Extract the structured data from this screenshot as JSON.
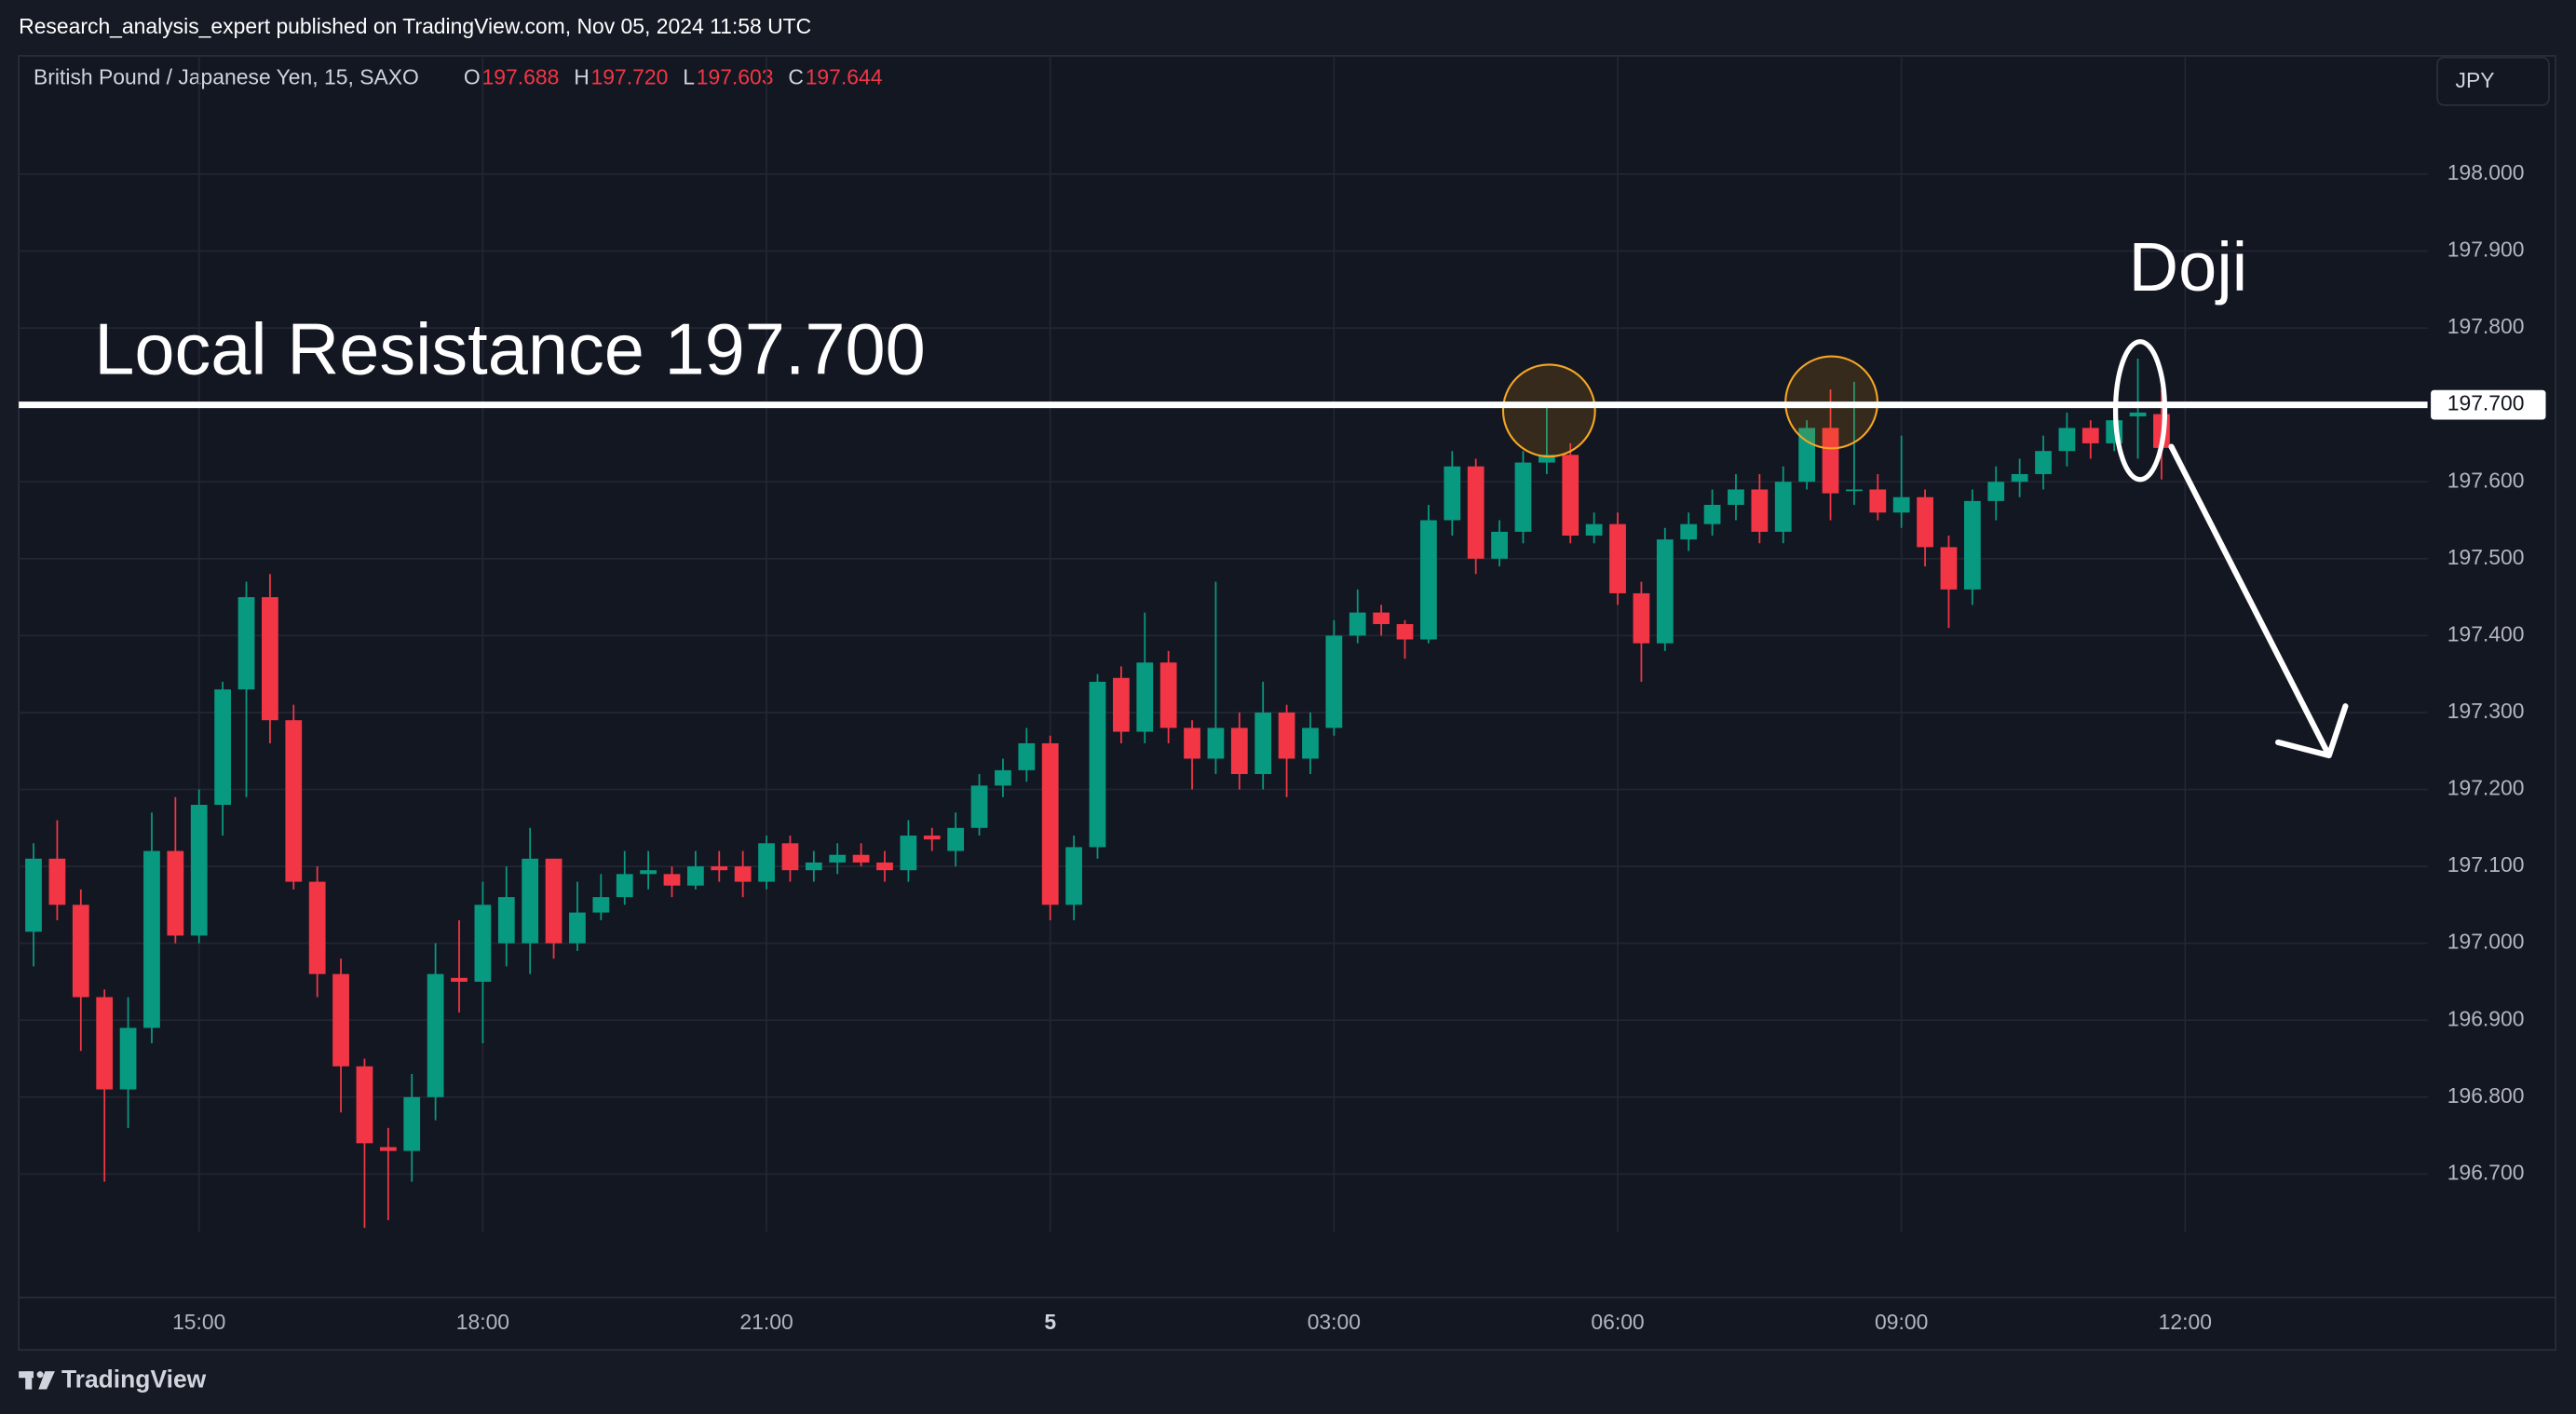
{
  "header": {
    "publisher": "Research_analysis_expert published on TradingView.com, Nov 05, 2024 11:58 UTC",
    "symbol": "British Pound / Japanese Yen, 15, SAXO",
    "ohlc": [
      {
        "key": "O",
        "value": "197.688"
      },
      {
        "key": "H",
        "value": "197.720"
      },
      {
        "key": "L",
        "value": "197.603"
      },
      {
        "key": "C",
        "value": "197.644"
      }
    ],
    "currency": "JPY",
    "logo": "TradingView"
  },
  "chart_data": {
    "type": "candlestick",
    "open": [
      197.015,
      197.11,
      197.05,
      196.93,
      196.81,
      196.89,
      197.12,
      197.01,
      197.18,
      197.33,
      197.45,
      197.29,
      197.08,
      196.96,
      196.84,
      196.735,
      196.73,
      196.8,
      196.955,
      196.95,
      197.0,
      197.0,
      197.11,
      197.0,
      197.04,
      197.06,
      197.09,
      197.09,
      197.075,
      197.1,
      197.1,
      197.08,
      197.13,
      197.095,
      197.105,
      197.115,
      197.105,
      197.095,
      197.14,
      197.12,
      197.15,
      197.205,
      197.225,
      197.26,
      197.05,
      197.125,
      197.345,
      197.275,
      197.365,
      197.28,
      197.24,
      197.28,
      197.22,
      197.3,
      197.24,
      197.28,
      197.4,
      197.43,
      197.415,
      197.395,
      197.55,
      197.62,
      197.5,
      197.535,
      197.625,
      197.635,
      197.53,
      197.545,
      197.455,
      197.39,
      197.525,
      197.545,
      197.57,
      197.59,
      197.535,
      197.6,
      197.67,
      197.59,
      197.59,
      197.56,
      197.58,
      197.515,
      197.46,
      197.575,
      197.6,
      197.61,
      197.64,
      197.67,
      197.65,
      197.685,
      197.688
    ],
    "high": [
      197.13,
      197.16,
      197.07,
      196.94,
      196.93,
      197.17,
      197.19,
      197.2,
      197.34,
      197.47,
      197.48,
      197.31,
      197.1,
      196.98,
      196.85,
      196.76,
      196.83,
      197.0,
      197.03,
      197.08,
      197.1,
      197.15,
      197.11,
      197.08,
      197.09,
      197.12,
      197.12,
      197.1,
      197.12,
      197.12,
      197.12,
      197.14,
      197.14,
      197.12,
      197.13,
      197.13,
      197.12,
      197.16,
      197.15,
      197.17,
      197.22,
      197.24,
      197.28,
      197.27,
      197.14,
      197.35,
      197.36,
      197.43,
      197.38,
      197.29,
      197.47,
      197.3,
      197.34,
      197.31,
      197.3,
      197.42,
      197.46,
      197.44,
      197.42,
      197.57,
      197.64,
      197.63,
      197.55,
      197.64,
      197.7,
      197.65,
      197.56,
      197.56,
      197.47,
      197.54,
      197.56,
      197.59,
      197.61,
      197.61,
      197.62,
      197.68,
      197.72,
      197.73,
      197.61,
      197.66,
      197.59,
      197.53,
      197.59,
      197.62,
      197.63,
      197.66,
      197.69,
      197.68,
      197.7,
      197.76,
      197.72
    ],
    "low": [
      196.97,
      197.03,
      196.86,
      196.69,
      196.76,
      196.87,
      197.0,
      197.0,
      197.14,
      197.19,
      197.26,
      197.07,
      196.93,
      196.78,
      196.63,
      196.64,
      196.69,
      196.77,
      196.91,
      196.87,
      196.97,
      196.96,
      196.98,
      196.99,
      197.03,
      197.05,
      197.07,
      197.06,
      197.07,
      197.08,
      197.06,
      197.07,
      197.08,
      197.08,
      197.09,
      197.1,
      197.08,
      197.08,
      197.12,
      197.1,
      197.14,
      197.19,
      197.21,
      197.03,
      197.03,
      197.11,
      197.26,
      197.26,
      197.26,
      197.2,
      197.22,
      197.2,
      197.2,
      197.19,
      197.22,
      197.27,
      197.39,
      197.4,
      197.37,
      197.39,
      197.53,
      197.48,
      197.49,
      197.52,
      197.61,
      197.52,
      197.52,
      197.44,
      197.34,
      197.38,
      197.51,
      197.53,
      197.55,
      197.52,
      197.52,
      197.59,
      197.55,
      197.57,
      197.55,
      197.54,
      197.49,
      197.41,
      197.44,
      197.55,
      197.58,
      197.59,
      197.62,
      197.63,
      197.64,
      197.63,
      197.603
    ],
    "close": [
      197.11,
      197.05,
      196.93,
      196.81,
      196.89,
      197.12,
      197.01,
      197.18,
      197.33,
      197.45,
      197.29,
      197.08,
      196.96,
      196.84,
      196.74,
      196.73,
      196.8,
      196.96,
      196.95,
      197.05,
      197.06,
      197.11,
      197.0,
      197.04,
      197.06,
      197.09,
      197.095,
      197.075,
      197.1,
      197.095,
      197.08,
      197.13,
      197.095,
      197.105,
      197.115,
      197.105,
      197.095,
      197.14,
      197.135,
      197.15,
      197.205,
      197.225,
      197.26,
      197.05,
      197.125,
      197.34,
      197.275,
      197.365,
      197.28,
      197.24,
      197.28,
      197.22,
      197.3,
      197.24,
      197.28,
      197.4,
      197.43,
      197.415,
      197.395,
      197.55,
      197.62,
      197.5,
      197.535,
      197.625,
      197.635,
      197.53,
      197.545,
      197.455,
      197.39,
      197.525,
      197.545,
      197.57,
      197.59,
      197.535,
      197.6,
      197.67,
      197.585,
      197.59,
      197.56,
      197.58,
      197.515,
      197.46,
      197.575,
      197.6,
      197.61,
      197.64,
      197.67,
      197.65,
      197.68,
      197.69,
      197.644
    ],
    "up_color": "#089981",
    "down_color": "#f23645",
    "xlim": [
      -0.625,
      101.25
    ],
    "xticks": [
      {
        "value": 7,
        "label": "15:00"
      },
      {
        "value": 19,
        "label": "18:00"
      },
      {
        "value": 31,
        "label": "21:00"
      },
      {
        "value": 43,
        "label": "5"
      },
      {
        "value": 55,
        "label": "03:00"
      },
      {
        "value": 67,
        "label": "06:00"
      },
      {
        "value": 79,
        "label": "09:00"
      },
      {
        "value": 91,
        "label": "12:00"
      }
    ],
    "ylim": [
      196.625,
      198.094
    ],
    "yticks": [
      {
        "value": 196.7,
        "label": "196.700"
      },
      {
        "value": 196.8,
        "label": "196.800"
      },
      {
        "value": 196.9,
        "label": "196.900"
      },
      {
        "value": 197.0,
        "label": "197.000"
      },
      {
        "value": 197.1,
        "label": "197.100"
      },
      {
        "value": 197.2,
        "label": "197.200"
      },
      {
        "value": 197.3,
        "label": "197.300"
      },
      {
        "value": 197.4,
        "label": "197.400"
      },
      {
        "value": 197.5,
        "label": "197.500"
      },
      {
        "value": 197.6,
        "label": "197.600"
      },
      {
        "value": 197.7,
        "label": "197.700"
      },
      {
        "value": 197.8,
        "label": "197.800"
      },
      {
        "value": 197.9,
        "label": "197.900"
      },
      {
        "value": 198.0,
        "label": "198.000"
      }
    ],
    "grid": true,
    "resistance": {
      "value": 197.7,
      "label": "197.700"
    },
    "annotations": {
      "resistance_text": "Local Resistance 197.700",
      "doji_text": "Doji"
    }
  }
}
